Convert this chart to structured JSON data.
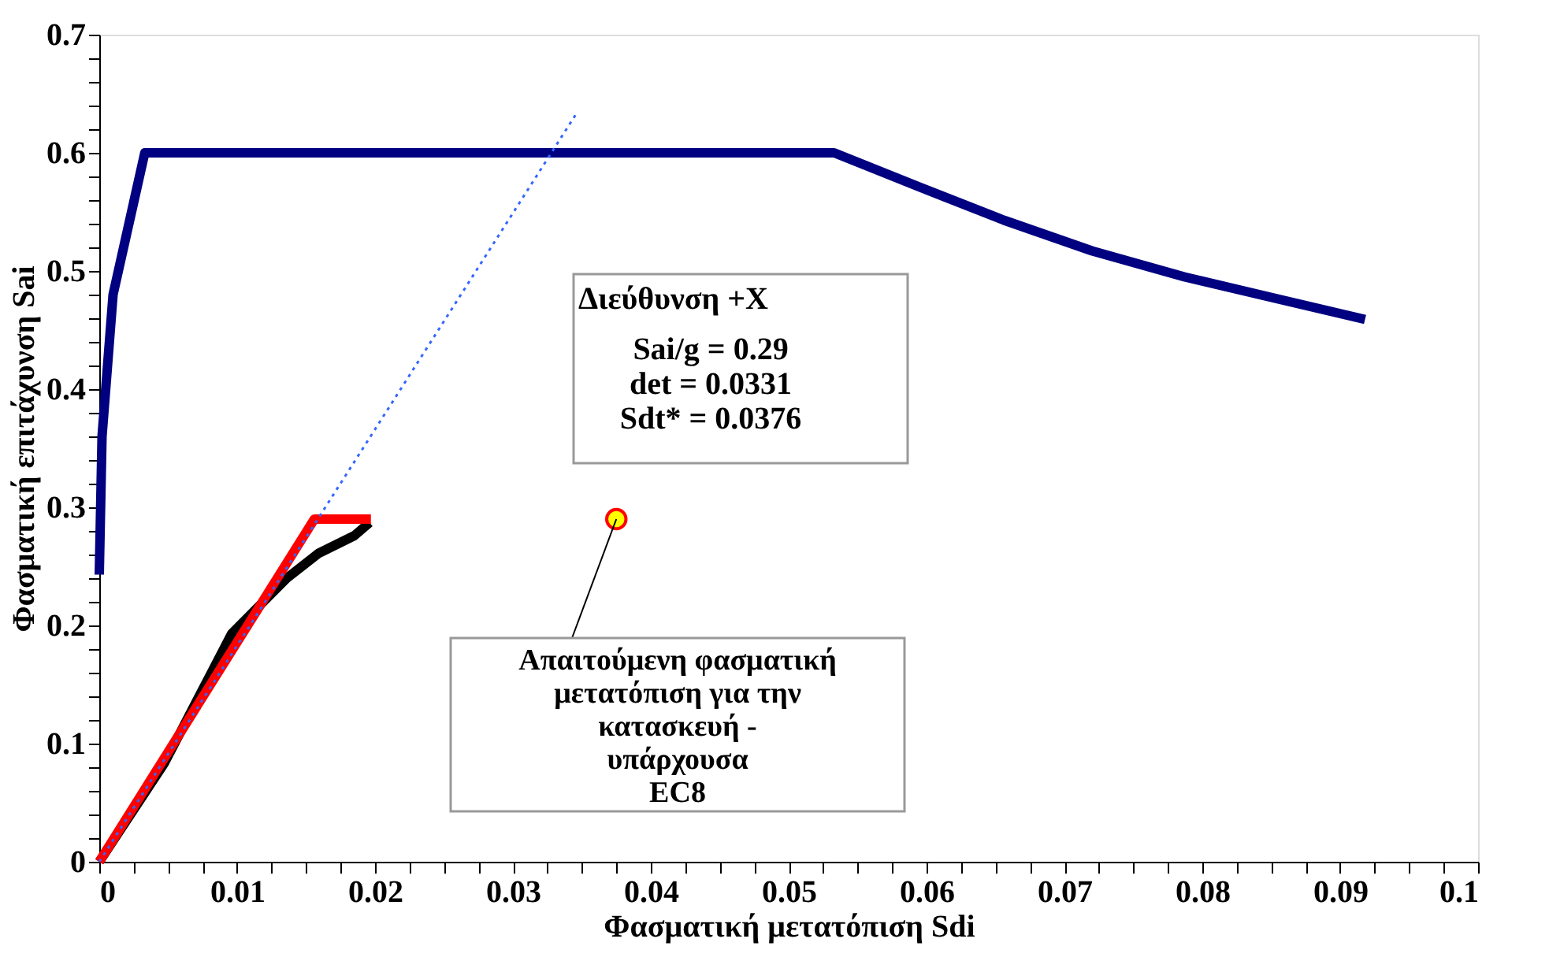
{
  "chart_data": {
    "type": "line",
    "xlabel": "Φασματική μετατόπιση Sdi",
    "ylabel": "Φασματική επιτάχυνση Sai",
    "series": [
      {
        "color": "#000080",
        "line_style": "solid",
        "x": [
          0,
          0.0002,
          0.001,
          0.0033,
          0.0533,
          0.0595,
          0.0656,
          0.072,
          0.0787,
          0.0856,
          0.0918
        ],
        "values": [
          0.243,
          0.36,
          0.48,
          0.6,
          0.6,
          0.571,
          0.543,
          0.517,
          0.495,
          0.476,
          0.459
        ]
      },
      {
        "color": "#000000",
        "line_style": "solid",
        "x": [
          0,
          0.0047,
          0.0096,
          0.0136,
          0.0159,
          0.0185,
          0.0196
        ],
        "values": [
          0,
          0.083,
          0.193,
          0.24,
          0.261,
          0.276,
          0.287
        ]
      },
      {
        "color": "#ff0000",
        "line_style": "solid",
        "x": [
          0,
          0.0156,
          0.0197
        ],
        "values": [
          0,
          0.29,
          0.29
        ]
      },
      {
        "color": "#3366ff",
        "line_style": "dotted",
        "x": [
          0,
          0.0347
        ],
        "values": [
          0,
          0.635
        ]
      },
      {
        "type": "scatter",
        "color": "#ffff00",
        "marker": "circle",
        "x": [
          0.0375
        ],
        "values": [
          0.29
        ]
      }
    ],
    "xlim": [
      0,
      0.1
    ],
    "ylim": [
      0,
      0.7
    ],
    "xticks": [
      0,
      {
        "value": 0.0025,
        "label": null
      },
      {
        "value": 0.005,
        "label": null
      },
      {
        "value": 0.0075,
        "label": null
      },
      0.01,
      {
        "value": 0.0125,
        "label": null
      },
      {
        "value": 0.015,
        "label": null
      },
      {
        "value": 0.0175,
        "label": null
      },
      0.02,
      {
        "value": 0.0225,
        "label": null
      },
      {
        "value": 0.025,
        "label": null
      },
      {
        "value": 0.0275,
        "label": null
      },
      0.03,
      {
        "value": 0.0325,
        "label": null
      },
      {
        "value": 0.035,
        "label": null
      },
      {
        "value": 0.0375,
        "label": null
      },
      0.04,
      {
        "value": 0.0425,
        "label": null
      },
      {
        "value": 0.045,
        "label": null
      },
      {
        "value": 0.0475,
        "label": null
      },
      0.05,
      {
        "value": 0.0525,
        "label": null
      },
      {
        "value": 0.055,
        "label": null
      },
      {
        "value": 0.0575,
        "label": null
      },
      0.06,
      {
        "value": 0.0625,
        "label": null
      },
      {
        "value": 0.065,
        "label": null
      },
      {
        "value": 0.0675,
        "label": null
      },
      0.07,
      {
        "value": 0.0725,
        "label": null
      },
      {
        "value": 0.075,
        "label": null
      },
      {
        "value": 0.0775,
        "label": null
      },
      0.08,
      {
        "value": 0.0825,
        "label": null
      },
      {
        "value": 0.085,
        "label": null
      },
      {
        "value": 0.0875,
        "label": null
      },
      0.09,
      {
        "value": 0.0925,
        "label": null
      },
      {
        "value": 0.095,
        "label": null
      },
      {
        "value": 0.0975,
        "label": null
      },
      0.1
    ],
    "yticks": [
      0,
      {
        "value": 0.02,
        "label": null
      },
      {
        "value": 0.04,
        "label": null
      },
      {
        "value": 0.06,
        "label": null
      },
      {
        "value": 0.08,
        "label": null
      },
      0.1,
      {
        "value": 0.12,
        "label": null
      },
      {
        "value": 0.14,
        "label": null
      },
      {
        "value": 0.16,
        "label": null
      },
      {
        "value": 0.18,
        "label": null
      },
      0.2,
      {
        "value": 0.22,
        "label": null
      },
      {
        "value": 0.24,
        "label": null
      },
      {
        "value": 0.26,
        "label": null
      },
      {
        "value": 0.28,
        "label": null
      },
      0.3,
      {
        "value": 0.32,
        "label": null
      },
      {
        "value": 0.34,
        "label": null
      },
      {
        "value": 0.36,
        "label": null
      },
      {
        "value": 0.38,
        "label": null
      },
      0.4,
      {
        "value": 0.42,
        "label": null
      },
      {
        "value": 0.44,
        "label": null
      },
      {
        "value": 0.46,
        "label": null
      },
      {
        "value": 0.48,
        "label": null
      },
      0.5,
      {
        "value": 0.52,
        "label": null
      },
      {
        "value": 0.54,
        "label": null
      },
      {
        "value": 0.56,
        "label": null
      },
      {
        "value": 0.58,
        "label": null
      },
      0.6,
      {
        "value": 0.62,
        "label": null
      },
      {
        "value": 0.64,
        "label": null
      },
      {
        "value": 0.66,
        "label": null
      },
      {
        "value": 0.68,
        "label": null
      },
      0.7
    ],
    "annotations": [
      "Διεύθυνση +X",
      "Sai/g = 0.29\ndet = 0.0331\nSdt* = 0.0376",
      {
        "text": "Απαιτούμενη φασματική\nμετατόπιση για την\nκατασκευή -\nυπάρχουσα\nEC8",
        "x": 0.0375,
        "y": 0.29
      }
    ],
    "grid": false
  }
}
